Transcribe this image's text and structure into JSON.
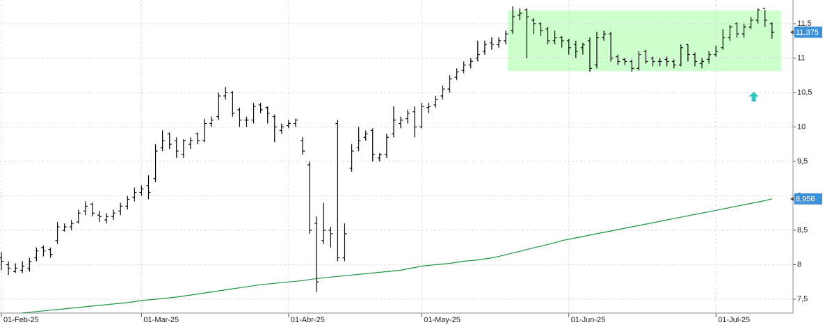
{
  "chart_data": {
    "type": "ohlc",
    "categories": [
      "01-Feb-25",
      null,
      null,
      null,
      null,
      null,
      null,
      null,
      null,
      null,
      null,
      null,
      null,
      null,
      null,
      null,
      null,
      null,
      null,
      null,
      "01-Mar-25",
      null,
      null,
      null,
      null,
      null,
      null,
      null,
      null,
      null,
      null,
      null,
      null,
      null,
      null,
      null,
      null,
      null,
      null,
      null,
      null,
      "01-Abr-25",
      null,
      null,
      null,
      null,
      null,
      null,
      null,
      null,
      null,
      null,
      null,
      null,
      null,
      null,
      null,
      null,
      null,
      null,
      "01-May-25",
      null,
      null,
      null,
      null,
      null,
      null,
      null,
      null,
      null,
      null,
      null,
      null,
      null,
      null,
      null,
      null,
      null,
      null,
      null,
      null,
      "01-Jun-25",
      null,
      null,
      null,
      null,
      null,
      null,
      null,
      null,
      null,
      null,
      null,
      null,
      null,
      null,
      null,
      null,
      null,
      null,
      null,
      null,
      "01-Jul-25",
      null,
      null,
      null,
      null,
      null,
      null,
      null,
      null
    ],
    "open": [
      8.1,
      8.0,
      7.9,
      7.92,
      7.95,
      8.1,
      8.25,
      8.22,
      8.35,
      8.5,
      8.55,
      8.62,
      8.78,
      8.88,
      8.72,
      8.65,
      8.7,
      8.78,
      8.85,
      8.98,
      9.05,
      9.15,
      9.25,
      9.7,
      9.9,
      9.8,
      9.6,
      9.75,
      9.9,
      9.8,
      10.05,
      10.15,
      10.45,
      10.5,
      10.25,
      10.1,
      10.1,
      10.32,
      10.28,
      10.15,
      9.95,
      10.02,
      10.05,
      9.8,
      9.45,
      8.6,
      8.35,
      8.5,
      10.05,
      8.1,
      9.4,
      9.7,
      9.85,
      9.95,
      9.55,
      9.6,
      9.9,
      10.05,
      10.12,
      10.22,
      10.0,
      10.28,
      10.32,
      10.45,
      10.55,
      10.72,
      10.82,
      10.9,
      11.0,
      11.1,
      11.22,
      11.2,
      11.25,
      11.4,
      11.62,
      11.7,
      11.55,
      11.5,
      11.42,
      11.25,
      11.3,
      11.25,
      11.2,
      11.15,
      11.25,
      10.9,
      11.3,
      11.35,
      11.02,
      10.98,
      10.95,
      10.85,
      11.1,
      11.0,
      10.95,
      10.98,
      10.95,
      10.9,
      11.2,
      11.05,
      10.92,
      10.98,
      11.05,
      11.15,
      11.3,
      11.5,
      11.35,
      11.45,
      11.55,
      11.72,
      11.5
    ],
    "high": [
      8.18,
      8.05,
      8.02,
      8.05,
      8.1,
      8.25,
      8.28,
      8.25,
      8.62,
      8.6,
      8.65,
      8.8,
      8.92,
      8.9,
      8.78,
      8.75,
      8.8,
      8.9,
      9.0,
      9.12,
      9.15,
      9.3,
      9.75,
      9.95,
      9.92,
      9.85,
      9.82,
      9.85,
      9.92,
      10.12,
      10.15,
      10.5,
      10.58,
      10.52,
      10.28,
      10.15,
      10.35,
      10.35,
      10.3,
      10.18,
      10.05,
      10.1,
      10.12,
      9.85,
      9.5,
      8.7,
      8.9,
      8.55,
      10.1,
      8.6,
      9.75,
      10.0,
      9.95,
      9.98,
      9.62,
      9.9,
      10.3,
      10.15,
      10.25,
      10.3,
      10.35,
      10.35,
      10.45,
      10.6,
      10.75,
      10.85,
      10.95,
      11.0,
      11.25,
      11.25,
      11.3,
      11.3,
      11.4,
      11.75,
      11.72,
      11.72,
      11.58,
      11.52,
      11.45,
      11.4,
      11.32,
      11.28,
      11.25,
      11.22,
      11.3,
      11.38,
      11.4,
      11.38,
      11.05,
      11.0,
      10.98,
      11.1,
      11.12,
      11.02,
      11.0,
      11.02,
      10.98,
      11.2,
      11.2,
      11.08,
      11.0,
      11.1,
      11.18,
      11.42,
      11.48,
      11.52,
      11.5,
      11.6,
      11.72,
      11.7,
      11.52
    ],
    "low": [
      7.92,
      7.85,
      7.88,
      7.88,
      7.9,
      8.05,
      8.12,
      8.1,
      8.3,
      8.48,
      8.5,
      8.6,
      8.72,
      8.7,
      8.62,
      8.6,
      8.65,
      8.72,
      8.8,
      8.92,
      9.0,
      8.95,
      9.2,
      9.65,
      9.68,
      9.55,
      9.55,
      9.68,
      9.75,
      9.78,
      10.0,
      10.1,
      10.4,
      10.15,
      10.0,
      10.0,
      10.05,
      10.2,
      10.05,
      9.78,
      9.9,
      9.98,
      10.0,
      9.6,
      8.45,
      7.6,
      8.3,
      8.25,
      8.05,
      8.05,
      9.35,
      9.65,
      9.8,
      9.5,
      9.5,
      9.55,
      9.85,
      9.98,
      10.05,
      9.85,
      9.98,
      10.2,
      10.28,
      10.4,
      10.5,
      10.68,
      10.78,
      10.85,
      10.95,
      11.05,
      11.12,
      11.15,
      11.2,
      11.35,
      11.55,
      11.0,
      11.35,
      11.32,
      11.2,
      11.2,
      11.15,
      11.05,
      11.0,
      11.05,
      10.8,
      10.85,
      11.25,
      10.95,
      10.9,
      10.9,
      10.8,
      10.82,
      10.92,
      10.88,
      10.88,
      10.88,
      10.85,
      10.88,
      10.95,
      10.88,
      10.85,
      10.92,
      11.02,
      11.12,
      11.25,
      11.3,
      11.3,
      11.42,
      11.5,
      11.45,
      11.28
    ],
    "close": [
      8.05,
      7.95,
      7.95,
      7.98,
      8.05,
      8.2,
      8.2,
      8.15,
      8.55,
      8.55,
      8.6,
      8.75,
      8.85,
      8.75,
      8.7,
      8.7,
      8.75,
      8.85,
      8.95,
      9.05,
      9.1,
      9.05,
      9.65,
      9.8,
      9.75,
      9.65,
      9.8,
      9.8,
      9.8,
      10.05,
      10.1,
      10.45,
      10.5,
      10.2,
      10.1,
      10.1,
      10.3,
      10.25,
      10.2,
      10.0,
      10.0,
      10.05,
      10.1,
      9.65,
      8.5,
      7.75,
      8.5,
      8.45,
      8.1,
      8.45,
      9.65,
      9.8,
      9.9,
      9.6,
      9.6,
      9.85,
      10.1,
      10.1,
      10.2,
      10.0,
      10.3,
      10.3,
      10.4,
      10.55,
      10.7,
      10.8,
      10.9,
      10.95,
      11.05,
      11.2,
      11.2,
      11.25,
      11.35,
      11.6,
      11.65,
      11.6,
      11.5,
      11.4,
      11.25,
      11.3,
      11.25,
      11.15,
      11.1,
      11.2,
      10.85,
      11.3,
      11.35,
      11.0,
      10.95,
      10.95,
      10.85,
      11.05,
      10.95,
      10.95,
      10.95,
      10.95,
      10.9,
      11.15,
      11.05,
      10.95,
      10.95,
      11.05,
      11.1,
      11.3,
      11.45,
      11.35,
      11.45,
      11.55,
      11.7,
      11.55,
      11.375
    ],
    "bar_color": "#000000",
    "moving_average": {
      "color": "#1a9641",
      "values": [
        null,
        null,
        null,
        7.3,
        7.31,
        7.32,
        7.33,
        7.34,
        7.35,
        7.36,
        7.37,
        7.38,
        7.39,
        7.4,
        7.41,
        7.42,
        7.43,
        7.44,
        7.45,
        7.465,
        7.48,
        7.49,
        7.5,
        7.51,
        7.52,
        7.53,
        7.545,
        7.56,
        7.575,
        7.59,
        7.605,
        7.62,
        7.635,
        7.65,
        7.665,
        7.68,
        7.695,
        7.71,
        7.72,
        7.73,
        7.74,
        7.75,
        7.76,
        7.77,
        7.785,
        7.8,
        7.81,
        7.82,
        7.83,
        7.84,
        7.85,
        7.86,
        7.87,
        7.88,
        7.89,
        7.9,
        7.91,
        7.92,
        7.94,
        7.96,
        7.98,
        7.99,
        8.0,
        8.01,
        8.02,
        8.035,
        8.05,
        8.06,
        8.07,
        8.085,
        8.1,
        8.12,
        8.145,
        8.17,
        8.195,
        8.22,
        8.245,
        8.27,
        8.295,
        8.32,
        8.35,
        8.37,
        8.39,
        8.41,
        8.43,
        8.45,
        8.47,
        8.49,
        8.51,
        8.53,
        8.55,
        8.57,
        8.59,
        8.61,
        8.63,
        8.65,
        8.67,
        8.69,
        8.71,
        8.73,
        8.75,
        8.77,
        8.79,
        8.81,
        8.83,
        8.85,
        8.87,
        8.89,
        8.91,
        8.93,
        8.956
      ]
    },
    "price_labels": [
      {
        "value": 11.375,
        "label": "11,375"
      },
      {
        "value": 8.956,
        "label": "8,956"
      }
    ],
    "price_label_color": "#3d8fd8",
    "highlight": {
      "x": [
        72.3,
        111.3
      ],
      "y": [
        10.81,
        11.69
      ],
      "color": "#ccffcc"
    },
    "arrow": {
      "x": 107.4,
      "y": 10.43,
      "color": "#2fc4c4"
    },
    "xlim": [
      -0.2,
      113
    ],
    "ylim": [
      7.298,
      11.843
    ],
    "yticks": [
      {
        "value": 7.5,
        "label": "7,5"
      },
      8,
      {
        "value": 8.5,
        "label": "8,5"
      },
      9,
      {
        "value": 9.5,
        "label": "9,5"
      },
      10,
      {
        "value": 10.5,
        "label": "10,5"
      },
      11,
      {
        "value": 11.5,
        "label": "11,5"
      }
    ],
    "grid": true
  }
}
